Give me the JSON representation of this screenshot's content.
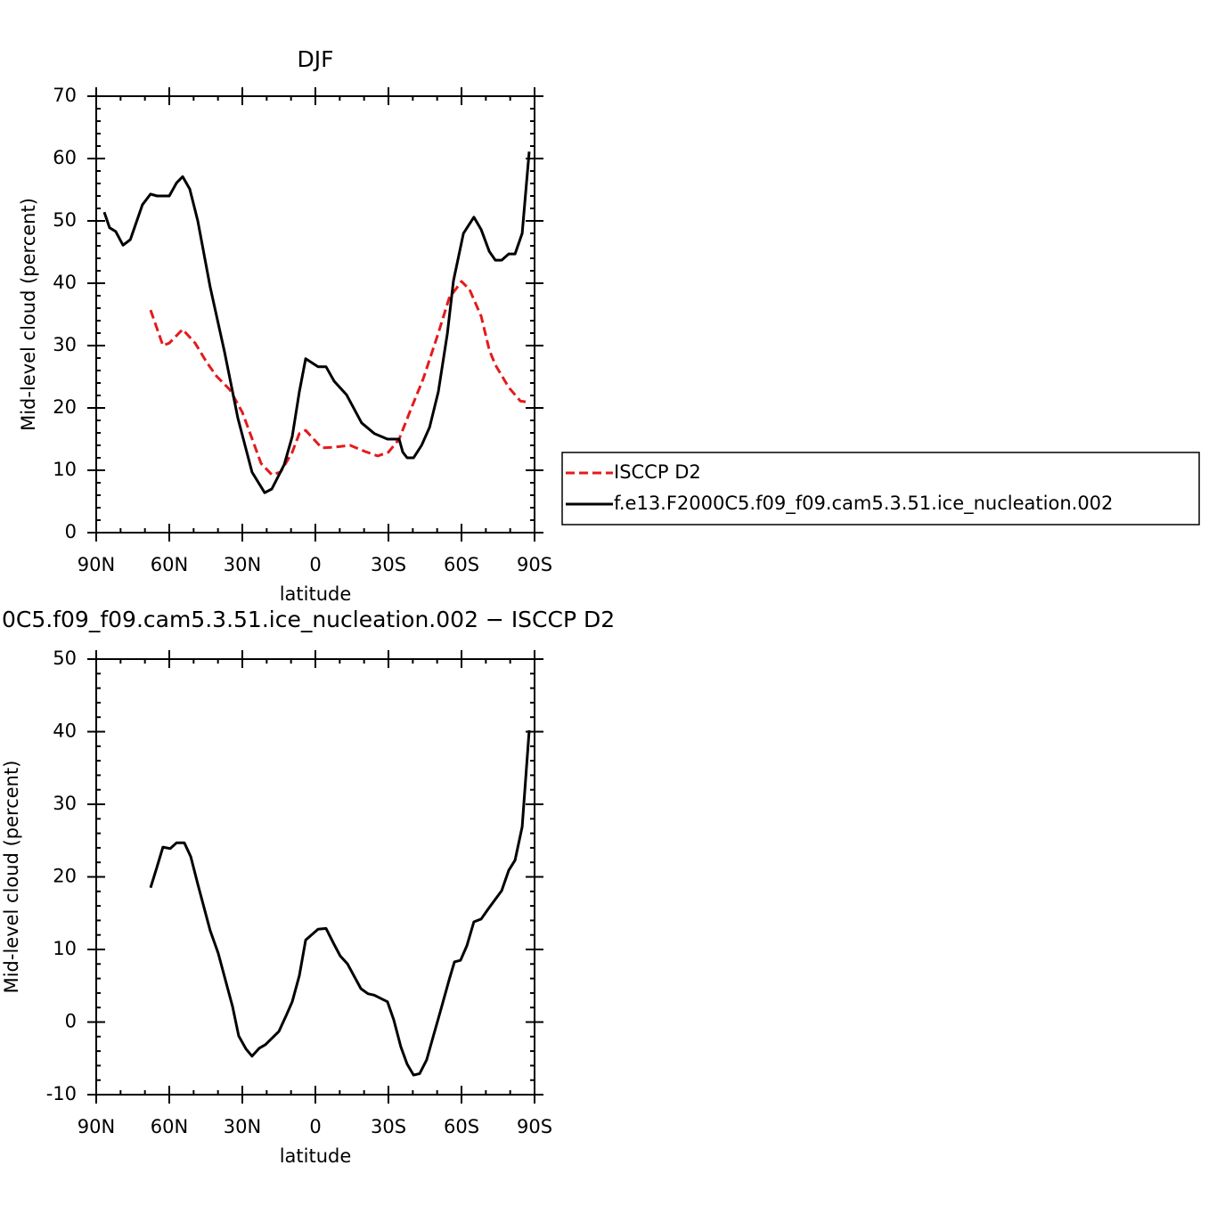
{
  "chart_data": [
    {
      "type": "line",
      "title": "DJF",
      "ylabel": "Mid-level cloud (percent)",
      "xlabel": "latitude",
      "xlim": [
        90,
        -90
      ],
      "xticks": [
        {
          "value": 90,
          "label": "90N"
        },
        {
          "value": 60,
          "label": "60N"
        },
        {
          "value": 30,
          "label": "30N"
        },
        0,
        {
          "value": -30,
          "label": "30S"
        },
        {
          "value": -60,
          "label": "60S"
        },
        {
          "value": -90,
          "label": "90S"
        }
      ],
      "ylim": [
        0,
        70
      ],
      "yticks": [
        0,
        10,
        20,
        30,
        40,
        50,
        60,
        70
      ],
      "legend": "right",
      "series": [
        {
          "name": "ISCCP D2",
          "color": "#e41a1c",
          "dash": true,
          "x": [
            67.7,
            62.6,
            60,
            54.5,
            49.4,
            44.6,
            40.6,
            35.1,
            30,
            26.3,
            22.3,
            17.9,
            14.3,
            9.5,
            6.6,
            4,
            0.7,
            -2.6,
            -7.7,
            -14.3,
            -20.5,
            -25.6,
            -30,
            -34.4,
            -38.8,
            -44.3,
            -50.5,
            -54.9,
            -60,
            -63.3,
            -68.1,
            -71.4,
            -73.9,
            -79.4,
            -84.2,
            -87.8
          ],
          "values": [
            35.7,
            30,
            30.4,
            32.6,
            30.4,
            27.3,
            25.1,
            22.9,
            19.3,
            15.4,
            11.1,
            9.3,
            9.7,
            12.9,
            15.9,
            16.4,
            15,
            13.6,
            13.7,
            14,
            13,
            12.3,
            12.9,
            15,
            19.4,
            24.7,
            32,
            37.6,
            40.3,
            39,
            34.7,
            29.3,
            26.9,
            23.3,
            21.1,
            20.9
          ]
        },
        {
          "name": "f.e13.F2000C5.f09_f09.cam5.3.51.ice_nucleation.002",
          "color": "#000000",
          "dash": false,
          "x": [
            86.7,
            84.5,
            82,
            79,
            76,
            71,
            67.7,
            65,
            60,
            57,
            54.5,
            51.6,
            48.3,
            43.2,
            37.3,
            31.8,
            26,
            20.8,
            17.9,
            12.8,
            9.5,
            6.6,
            4,
            -1.1,
            -4.4,
            -7.7,
            -12.8,
            -16.1,
            -19,
            -24.2,
            -29.6,
            -34.4,
            -35.9,
            -37.7,
            -40.3,
            -43.6,
            -46.9,
            -50.5,
            -54.2,
            -56.7,
            -60.8,
            -65.1,
            -68.1,
            -71.4,
            -73.9,
            -76.5,
            -79.4,
            -82,
            -84.9,
            -87.8
          ],
          "values": [
            51.4,
            48.9,
            48.3,
            46.1,
            47,
            52.6,
            54.3,
            54,
            54,
            56.1,
            57.1,
            55.1,
            50,
            39.4,
            29,
            18.3,
            9.7,
            6.4,
            7,
            10.9,
            15.4,
            22.6,
            27.9,
            26.6,
            26.6,
            24.3,
            22.1,
            19.7,
            17.6,
            15.9,
            15,
            15,
            12.9,
            12,
            12,
            14,
            16.9,
            22.6,
            31.9,
            40.4,
            48,
            50.6,
            48.6,
            45.1,
            43.7,
            43.7,
            44.7,
            44.7,
            48,
            61.1
          ]
        }
      ]
    },
    {
      "type": "line",
      "title": "0C5.f09_f09.cam5.3.51.ice_nucleation.002 − ISCCP D2",
      "ylabel": "Mid-level cloud (percent)",
      "xlabel": "latitude",
      "xlim": [
        90,
        -90
      ],
      "xticks": [
        {
          "value": 90,
          "label": "90N"
        },
        {
          "value": 60,
          "label": "60N"
        },
        {
          "value": 30,
          "label": "30N"
        },
        0,
        {
          "value": -30,
          "label": "30S"
        },
        {
          "value": -60,
          "label": "60S"
        },
        {
          "value": -90,
          "label": "90S"
        }
      ],
      "ylim": [
        -10,
        50
      ],
      "yticks": [
        -10,
        0,
        10,
        20,
        30,
        40,
        50
      ],
      "series": [
        {
          "color": "#000000",
          "dash": false,
          "x": [
            67.7,
            65,
            62.6,
            59.6,
            57,
            53.8,
            51.2,
            48.3,
            43.2,
            39.9,
            34,
            31.5,
            28.5,
            26,
            23,
            20.5,
            15,
            12,
            9.5,
            6.6,
            4,
            -1.1,
            -4.4,
            -7.7,
            -10.2,
            -13.2,
            -18.7,
            -21.6,
            -24.2,
            -29.6,
            -32.2,
            -35.1,
            -37.7,
            -40.3,
            -42.8,
            -45.7,
            -48.3,
            -51.2,
            -54.9,
            -57.1,
            -59.6,
            -62.2,
            -65.1,
            -68.1,
            -71,
            -76.5,
            -79.4,
            -82,
            -84.9,
            -87.8
          ],
          "values": [
            18.5,
            21.4,
            24.1,
            23.9,
            24.7,
            24.7,
            22.8,
            19,
            12.6,
            9.5,
            2.1,
            -1.9,
            -3.7,
            -4.7,
            -3.6,
            -3.1,
            -1.3,
            0.9,
            2.8,
            6.4,
            11.3,
            12.8,
            12.9,
            10.7,
            9.1,
            8,
            4.6,
            3.9,
            3.7,
            2.8,
            0.3,
            -3.4,
            -5.8,
            -7.3,
            -7.1,
            -5.2,
            -2.1,
            1.3,
            5.8,
            8.3,
            8.5,
            10.5,
            13.8,
            14.2,
            15.6,
            18.1,
            20.9,
            22.3,
            26.9,
            40.2
          ]
        }
      ]
    }
  ]
}
